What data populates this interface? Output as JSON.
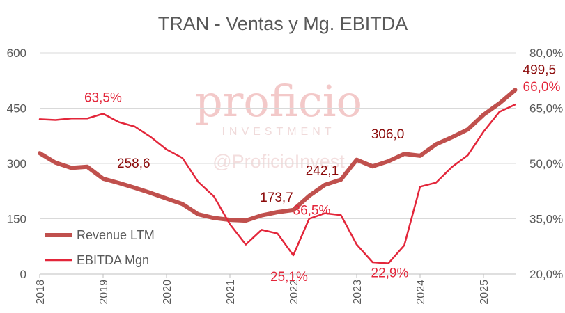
{
  "chart_data": {
    "type": "line",
    "title": "TRAN - Ventas y Mg. EBITDA",
    "x": [
      2018.0,
      2018.25,
      2018.5,
      2018.75,
      2019.0,
      2019.25,
      2019.5,
      2019.75,
      2020.0,
      2020.25,
      2020.5,
      2020.75,
      2021.0,
      2021.25,
      2021.5,
      2021.75,
      2022.0,
      2022.25,
      2022.5,
      2022.75,
      2023.0,
      2023.25,
      2023.5,
      2023.75,
      2024.0,
      2024.25,
      2024.5,
      2024.75,
      2025.0,
      2025.25,
      2025.5
    ],
    "x_ticks": [
      "2018",
      "2019",
      "2020",
      "2021",
      "2022",
      "2023",
      "2024",
      "2025"
    ],
    "y_left": {
      "ticks": [
        "0",
        "150",
        "300",
        "450",
        "600"
      ],
      "lim": [
        0,
        600
      ]
    },
    "y_right": {
      "ticks": [
        "20,0%",
        "35,0%",
        "50,0%",
        "65,0%",
        "80,0%"
      ],
      "lim": [
        20,
        80
      ]
    },
    "series": [
      {
        "name": "Revenue LTM",
        "axis": "left",
        "color": "#c0504d",
        "values": [
          328,
          302,
          288,
          291,
          258.6,
          247,
          234,
          220,
          205,
          190,
          162,
          152,
          147,
          145,
          159,
          168,
          173.7,
          212,
          242.1,
          256,
          310,
          292,
          306.0,
          326,
          321,
          352,
          371,
          392,
          432,
          463,
          499.5
        ]
      },
      {
        "name": "EBITDA Mgn",
        "axis": "right",
        "color": "#e3263a",
        "values": [
          62.0,
          61.8,
          62.2,
          62.2,
          63.5,
          61.2,
          60.0,
          57.2,
          53.8,
          51.5,
          45.0,
          41.0,
          33.5,
          28.0,
          32.0,
          31.0,
          25.1,
          35.0,
          36.5,
          36.0,
          28.0,
          23.2,
          22.9,
          27.8,
          43.7,
          44.8,
          49.0,
          52.2,
          58.6,
          64.0,
          66.0
        ]
      }
    ],
    "data_labels": [
      {
        "series": 0,
        "index": 4,
        "text": "258,6",
        "color": "#8b0a0a"
      },
      {
        "series": 0,
        "index": 16,
        "text": "173,7",
        "color": "#8b0a0a"
      },
      {
        "series": 0,
        "index": 18,
        "text": "242,1",
        "color": "#8b0a0a"
      },
      {
        "series": 0,
        "index": 22,
        "text": "306,0",
        "color": "#8b0a0a"
      },
      {
        "series": 0,
        "index": 30,
        "text": "499,5",
        "color": "#8b0a0a"
      },
      {
        "series": 1,
        "index": 4,
        "text": "63,5%",
        "color": "#e3263a"
      },
      {
        "series": 1,
        "index": 16,
        "text": "25,1%",
        "color": "#e3263a"
      },
      {
        "series": 1,
        "index": 18,
        "text": "36,5%",
        "color": "#e3263a"
      },
      {
        "series": 1,
        "index": 22,
        "text": "22,9%",
        "color": "#e3263a"
      },
      {
        "series": 1,
        "index": 30,
        "text": "66,0%",
        "color": "#e3263a"
      }
    ],
    "legend": {
      "placement": "bottom-left"
    },
    "grid": true
  },
  "watermark": {
    "logo": "proficio",
    "subtitle": "INVESTMENT",
    "handle": "@ProficioInvest"
  }
}
